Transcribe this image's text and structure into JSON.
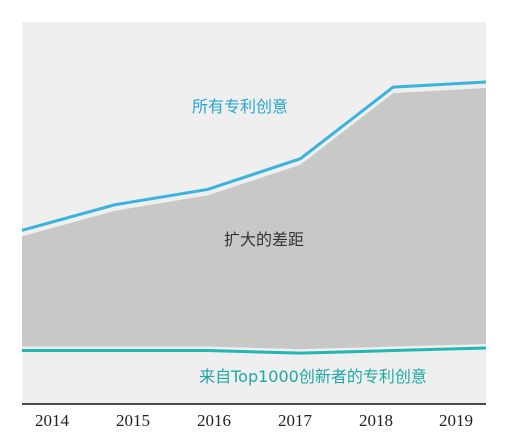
{
  "chart_data": {
    "type": "area",
    "title": "",
    "xlabel": "",
    "ylabel": "",
    "x": [
      "2014",
      "2015",
      "2016",
      "2017",
      "2018",
      "2019"
    ],
    "ylim": [
      0,
      100
    ],
    "grid": false,
    "legend": "none",
    "series": [
      {
        "name": "所有专利创意",
        "values": [
          46,
          56,
          62,
          74,
          102,
          104
        ]
      },
      {
        "name": "来自Top1000创新者的专利创意",
        "values": [
          -1,
          -1,
          -1,
          -2,
          -1,
          0
        ]
      }
    ],
    "annotations": {
      "upper_label": "所有专利创意",
      "gap_label": "扩大的差距",
      "lower_label": "来自Top1000创新者的专利创意"
    },
    "colors": {
      "upper_line": "#3ab3dd",
      "lower_line": "#23b7b3",
      "gap_fill": "#c8c9c6",
      "panel_bg": "#eeefee",
      "axis": "#111111"
    }
  }
}
